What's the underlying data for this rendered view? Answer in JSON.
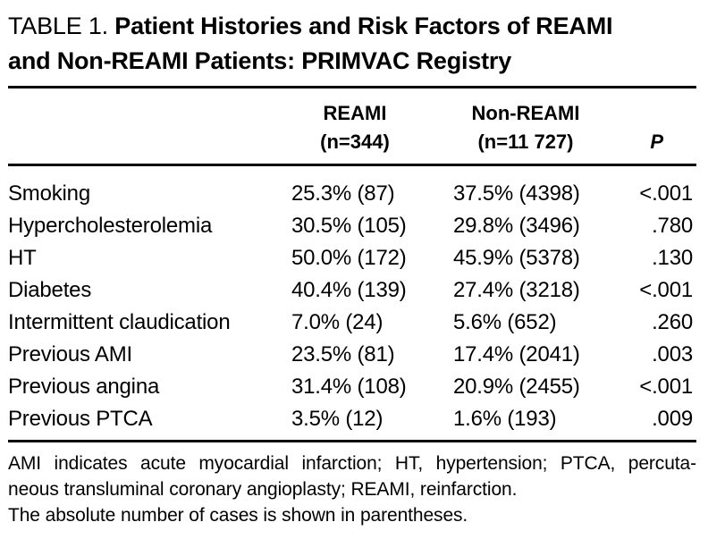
{
  "title": {
    "prefix": "TABLE 1.",
    "line1": "Patient Histories and Risk Factors of REAMI",
    "line2": "and Non-REAMI Patients: PRIMVAC Registry"
  },
  "columns": {
    "reami": {
      "line1": "REAMI",
      "line2": "(n=344)"
    },
    "non_reami": {
      "line1": "Non-REAMI",
      "line2": "(n=11 727)"
    },
    "p": "P"
  },
  "rows": [
    {
      "label": "Smoking",
      "reami": "25.3% (87)",
      "non_reami": "37.5% (4398)",
      "p": "<.001"
    },
    {
      "label": "Hypercholesterolemia",
      "reami": "30.5% (105)",
      "non_reami": "29.8% (3496)",
      "p": ".780"
    },
    {
      "label": "HT",
      "reami": "50.0% (172)",
      "non_reami": "45.9% (5378)",
      "p": ".130"
    },
    {
      "label": "Diabetes",
      "reami": "40.4% (139)",
      "non_reami": "27.4% (3218)",
      "p": "<.001"
    },
    {
      "label": "Intermittent claudication",
      "reami": "7.0% (24)",
      "non_reami": "5.6% (652)",
      "p": ".260"
    },
    {
      "label": "Previous AMI",
      "reami": "23.5% (81)",
      "non_reami": "17.4% (2041)",
      "p": ".003"
    },
    {
      "label": "Previous angina",
      "reami": "31.4% (108)",
      "non_reami": "20.9% (2455)",
      "p": "<.001"
    },
    {
      "label": "Previous PTCA",
      "reami": "3.5% (12)",
      "non_reami": "1.6% (193)",
      "p": ".009"
    }
  ],
  "footnotes": [
    "AMI indicates acute myocardial infarction; HT, hypertension; PTCA, percuta-",
    "neous transluminal coronary angioplasty; REAMI, reinfarction.",
    "The absolute number of cases is shown in parentheses."
  ],
  "colors": {
    "background": "#ffffff",
    "text": "#000000",
    "rule": "#000000"
  }
}
